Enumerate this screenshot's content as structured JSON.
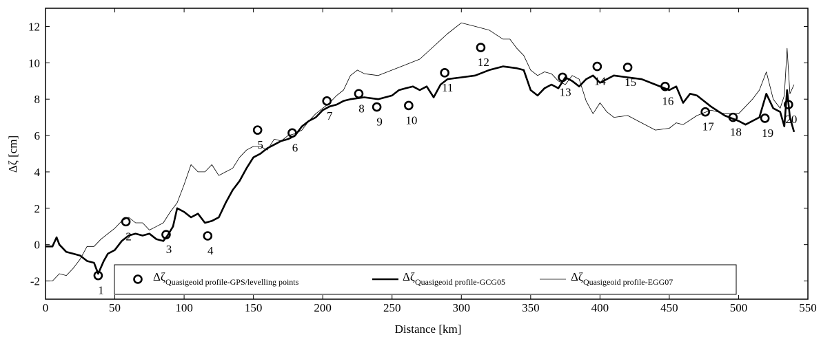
{
  "chart_data": {
    "type": "line",
    "x_label": "Distance [km]",
    "y_label": "Δζ [cm]",
    "xlim": [
      0,
      550
    ],
    "ylim": [
      -3,
      13
    ],
    "xticks": [
      0,
      50,
      100,
      150,
      200,
      250,
      300,
      350,
      400,
      450,
      500,
      550
    ],
    "yticks": [
      -2,
      0,
      2,
      4,
      6,
      8,
      10,
      12
    ],
    "legend": "bottom",
    "series": [
      {
        "name": "Δζ",
        "name_subscript": "Quasigeoid profile-GPS/levelling points",
        "style": "marker",
        "color": "#000000",
        "x": [
          38,
          58,
          87,
          117,
          153,
          178,
          203,
          226,
          239,
          262,
          288,
          314,
          373,
          398,
          420,
          447,
          476,
          496,
          519,
          536
        ],
        "values": [
          -1.7,
          1.26,
          0.55,
          0.48,
          6.3,
          6.14,
          7.9,
          8.3,
          7.57,
          7.65,
          9.45,
          10.84,
          9.2,
          9.8,
          9.75,
          8.7,
          7.3,
          7.0,
          6.95,
          7.7
        ],
        "labels": [
          "1",
          "2",
          "3",
          "4",
          "5",
          "6",
          "7",
          "8",
          "9",
          "10",
          "11",
          "12",
          "13",
          "14",
          "15",
          "16",
          "17",
          "18",
          "19",
          "20"
        ]
      },
      {
        "name": "Δζ",
        "name_subscript": "Quasigeoid profile-GCG05",
        "style": "thick",
        "color": "#000000",
        "x": [
          0,
          5,
          8,
          10,
          15,
          20,
          25,
          30,
          35,
          38,
          42,
          45,
          50,
          55,
          60,
          65,
          70,
          75,
          80,
          85,
          88,
          92,
          95,
          100,
          105,
          110,
          115,
          120,
          125,
          130,
          135,
          140,
          145,
          150,
          155,
          160,
          165,
          170,
          175,
          180,
          185,
          190,
          195,
          200,
          205,
          210,
          215,
          220,
          230,
          240,
          250,
          255,
          260,
          265,
          270,
          275,
          280,
          285,
          290,
          300,
          310,
          320,
          330,
          340,
          345,
          350,
          355,
          360,
          365,
          370,
          375,
          380,
          385,
          390,
          395,
          400,
          410,
          420,
          430,
          440,
          450,
          455,
          460,
          465,
          470,
          480,
          490,
          500,
          505,
          510,
          515,
          520,
          525,
          530,
          533,
          535,
          537,
          540
        ],
        "values": [
          -0.1,
          -0.1,
          0.4,
          0.0,
          -0.4,
          -0.5,
          -0.6,
          -0.9,
          -1.0,
          -1.6,
          -0.9,
          -0.5,
          -0.3,
          0.2,
          0.5,
          0.6,
          0.5,
          0.6,
          0.3,
          0.2,
          0.5,
          1.0,
          2.0,
          1.8,
          1.5,
          1.7,
          1.2,
          1.3,
          1.5,
          2.3,
          3.0,
          3.5,
          4.2,
          4.8,
          5.0,
          5.3,
          5.5,
          5.7,
          5.8,
          6.0,
          6.5,
          6.8,
          7.0,
          7.4,
          7.6,
          7.7,
          7.9,
          8.0,
          8.1,
          8.0,
          8.2,
          8.5,
          8.6,
          8.7,
          8.5,
          8.7,
          8.1,
          8.8,
          9.1,
          9.2,
          9.3,
          9.6,
          9.8,
          9.7,
          9.6,
          8.5,
          8.2,
          8.6,
          8.8,
          8.6,
          9.2,
          9.0,
          8.7,
          9.1,
          9.3,
          8.9,
          9.3,
          9.2,
          9.1,
          8.8,
          8.5,
          8.7,
          7.8,
          8.3,
          8.2,
          7.6,
          7.1,
          6.8,
          6.6,
          6.8,
          7.0,
          8.3,
          7.5,
          7.3,
          6.5,
          8.5,
          7.0,
          6.2
        ]
      },
      {
        "name": "Δζ",
        "name_subscript": "Quasigeoid profile-EGG07",
        "style": "thin",
        "color": "#000000",
        "x": [
          0,
          5,
          10,
          15,
          20,
          25,
          30,
          35,
          40,
          45,
          50,
          55,
          60,
          65,
          70,
          75,
          80,
          85,
          90,
          95,
          100,
          105,
          110,
          115,
          120,
          125,
          130,
          135,
          140,
          145,
          150,
          155,
          160,
          165,
          170,
          175,
          180,
          185,
          190,
          195,
          200,
          205,
          210,
          215,
          220,
          225,
          230,
          240,
          250,
          260,
          270,
          280,
          290,
          300,
          310,
          320,
          330,
          335,
          340,
          345,
          350,
          355,
          360,
          365,
          370,
          375,
          380,
          385,
          390,
          395,
          400,
          405,
          410,
          420,
          430,
          440,
          450,
          455,
          460,
          470,
          480,
          490,
          500,
          505,
          510,
          515,
          520,
          525,
          530,
          533,
          535,
          537,
          540
        ],
        "values": [
          -2.0,
          -2.0,
          -1.6,
          -1.7,
          -1.3,
          -0.8,
          -0.1,
          -0.1,
          0.3,
          0.6,
          0.9,
          1.3,
          1.5,
          1.2,
          1.2,
          0.8,
          1.0,
          1.2,
          1.8,
          2.3,
          3.3,
          4.4,
          4.0,
          4.0,
          4.4,
          3.8,
          4.0,
          4.2,
          4.8,
          5.2,
          5.4,
          5.4,
          5.2,
          5.8,
          5.7,
          6.0,
          6.1,
          6.3,
          6.8,
          7.2,
          7.5,
          7.8,
          8.2,
          8.5,
          9.3,
          9.6,
          9.4,
          9.3,
          9.6,
          9.9,
          10.2,
          10.9,
          11.6,
          12.2,
          12.0,
          11.8,
          11.3,
          11.3,
          10.8,
          10.4,
          9.6,
          9.3,
          9.5,
          9.4,
          9.0,
          8.8,
          9.3,
          9.1,
          7.9,
          7.2,
          7.8,
          7.3,
          7.0,
          7.1,
          6.7,
          6.3,
          6.4,
          6.7,
          6.6,
          7.1,
          7.4,
          7.2,
          7.2,
          7.6,
          8.0,
          8.5,
          9.5,
          8.0,
          7.5,
          8.2,
          10.8,
          8.3,
          8.8
        ]
      }
    ]
  }
}
